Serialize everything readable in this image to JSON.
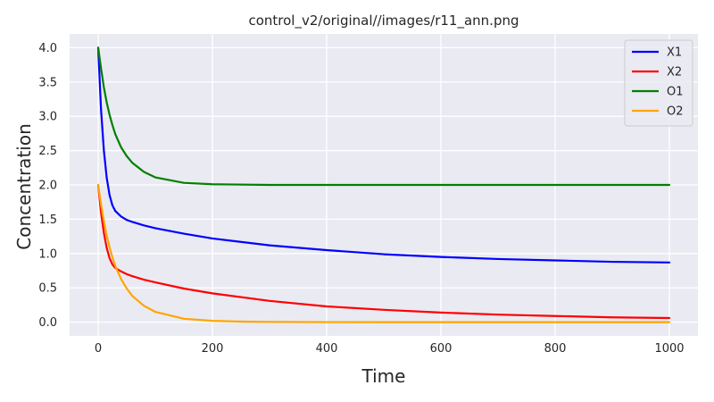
{
  "chart_data": {
    "type": "line",
    "title": "control_v2/original//images/r11_ann.png",
    "xlabel": "Time",
    "ylabel": "Concentration",
    "xlim": [
      -50,
      1050
    ],
    "ylim": [
      -0.2,
      4.2
    ],
    "xticks": [
      0,
      200,
      400,
      600,
      800,
      1000
    ],
    "xtick_labels": [
      "0",
      "200",
      "400",
      "600",
      "800",
      "1000"
    ],
    "yticks": [
      0.0,
      0.5,
      1.0,
      1.5,
      2.0,
      2.5,
      3.0,
      3.5,
      4.0
    ],
    "ytick_labels": [
      "0.0",
      "0.5",
      "1.0",
      "1.5",
      "2.0",
      "2.5",
      "3.0",
      "3.5",
      "4.0"
    ],
    "grid": true,
    "legend_position": "top-right",
    "background": "#eaeaf2",
    "series": [
      {
        "name": "X1",
        "color": "#0000ff",
        "x": [
          0,
          5,
          10,
          15,
          20,
          25,
          30,
          40,
          50,
          60,
          80,
          100,
          150,
          200,
          300,
          400,
          500,
          600,
          700,
          800,
          900,
          1000
        ],
        "y": [
          4.0,
          3.1,
          2.5,
          2.1,
          1.85,
          1.7,
          1.62,
          1.54,
          1.49,
          1.46,
          1.41,
          1.37,
          1.29,
          1.22,
          1.12,
          1.05,
          0.99,
          0.95,
          0.92,
          0.9,
          0.88,
          0.87
        ]
      },
      {
        "name": "X2",
        "color": "#ff0000",
        "x": [
          0,
          5,
          10,
          15,
          20,
          25,
          30,
          40,
          50,
          60,
          80,
          100,
          150,
          200,
          300,
          400,
          500,
          600,
          700,
          800,
          900,
          1000
        ],
        "y": [
          2.0,
          1.6,
          1.3,
          1.08,
          0.93,
          0.84,
          0.79,
          0.74,
          0.7,
          0.67,
          0.62,
          0.58,
          0.49,
          0.42,
          0.31,
          0.23,
          0.18,
          0.14,
          0.11,
          0.09,
          0.07,
          0.06
        ]
      },
      {
        "name": "O1",
        "color": "#008000",
        "x": [
          0,
          5,
          10,
          15,
          20,
          25,
          30,
          40,
          50,
          60,
          80,
          100,
          150,
          200,
          300,
          400,
          500,
          600,
          700,
          800,
          900,
          1000
        ],
        "y": [
          4.0,
          3.7,
          3.42,
          3.2,
          3.02,
          2.87,
          2.74,
          2.55,
          2.42,
          2.32,
          2.19,
          2.11,
          2.03,
          2.01,
          2.0,
          2.0,
          2.0,
          2.0,
          2.0,
          2.0,
          2.0,
          2.0
        ]
      },
      {
        "name": "O2",
        "color": "#ffa500",
        "x": [
          0,
          5,
          10,
          15,
          20,
          25,
          30,
          40,
          50,
          60,
          80,
          100,
          150,
          200,
          250,
          300,
          400,
          500,
          600,
          700,
          800,
          900,
          1000
        ],
        "y": [
          2.0,
          1.72,
          1.47,
          1.26,
          1.09,
          0.94,
          0.82,
          0.63,
          0.49,
          0.38,
          0.24,
          0.15,
          0.05,
          0.02,
          0.008,
          0.004,
          0.001,
          0.0,
          0.0,
          0.0,
          0.0,
          0.0,
          0.0
        ]
      }
    ]
  }
}
